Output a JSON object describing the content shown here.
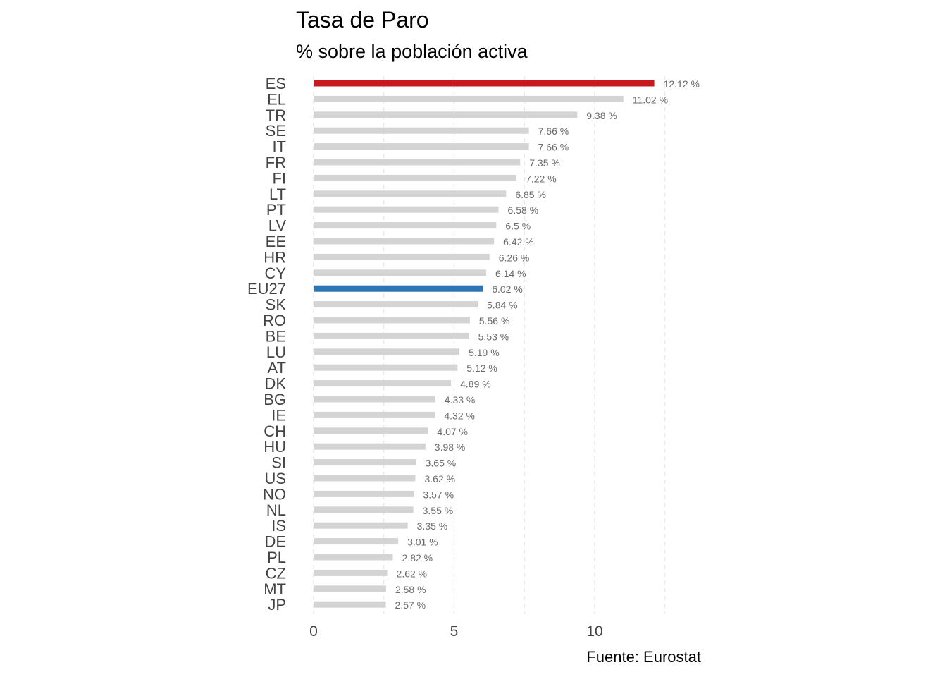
{
  "chart_data": {
    "type": "bar",
    "orientation": "horizontal",
    "title": "Tasa de Paro",
    "subtitle": "% sobre la población activa",
    "caption": "Fuente: Eurostat",
    "value_suffix": " %",
    "xlim": [
      0,
      12.6
    ],
    "x_ticks": [
      0,
      5,
      10
    ],
    "grid": "vertical",
    "colors": {
      "default": "#d4d4d4",
      "ES": "#c8191c",
      "EU27": "#2e75b6",
      "grid": "#e3e3e3"
    },
    "categories": [
      "ES",
      "EL",
      "TR",
      "SE",
      "IT",
      "FR",
      "FI",
      "LT",
      "PT",
      "LV",
      "EE",
      "HR",
      "CY",
      "EU27",
      "SK",
      "RO",
      "BE",
      "LU",
      "AT",
      "DK",
      "BG",
      "IE",
      "CH",
      "HU",
      "SI",
      "US",
      "NO",
      "NL",
      "IS",
      "DE",
      "PL",
      "CZ",
      "MT",
      "JP"
    ],
    "values": [
      12.12,
      11.02,
      9.38,
      7.66,
      7.66,
      7.35,
      7.22,
      6.85,
      6.58,
      6.5,
      6.42,
      6.26,
      6.14,
      6.02,
      5.84,
      5.56,
      5.53,
      5.19,
      5.12,
      4.89,
      4.33,
      4.32,
      4.07,
      3.98,
      3.65,
      3.62,
      3.57,
      3.55,
      3.35,
      3.01,
      2.82,
      2.62,
      2.58,
      2.57
    ],
    "value_labels": [
      "12.12",
      "11.02",
      "9.38",
      "7.66",
      "7.66",
      "7.35",
      "7.22",
      "6.85",
      "6.58",
      "6.5",
      "6.42",
      "6.26",
      "6.14",
      "6.02",
      "5.84",
      "5.56",
      "5.53",
      "5.19",
      "5.12",
      "4.89",
      "4.33",
      "4.32",
      "4.07",
      "3.98",
      "3.65",
      "3.62",
      "3.57",
      "3.55",
      "3.35",
      "3.01",
      "2.82",
      "2.62",
      "2.58",
      "2.57"
    ]
  }
}
